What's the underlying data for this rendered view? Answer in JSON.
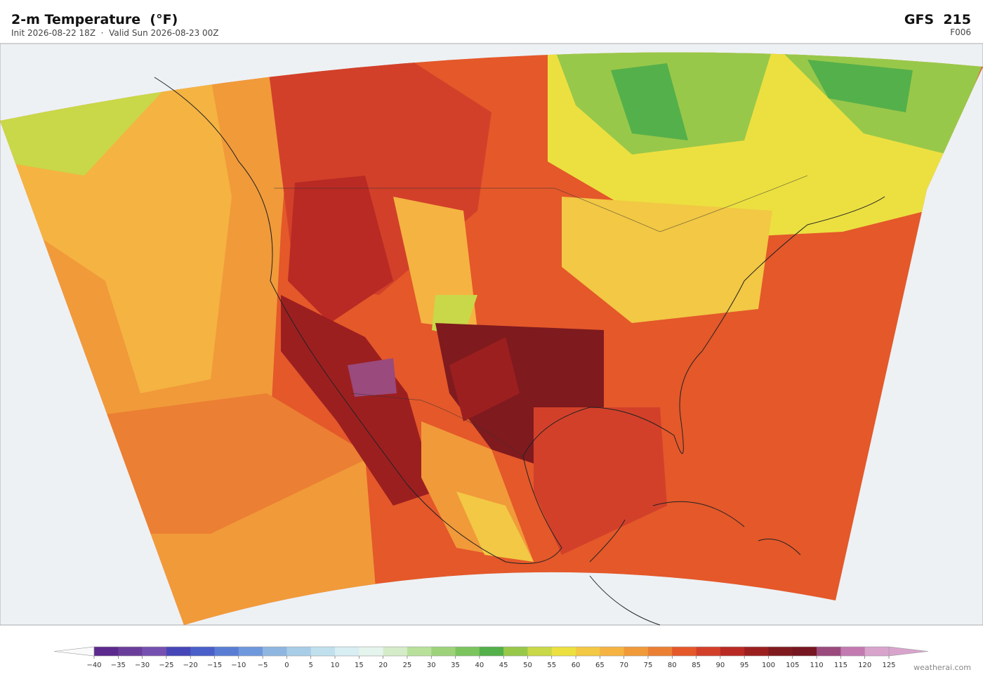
{
  "header": {
    "title": "2-m Temperature  (°F)",
    "subtitle": "Init 2026-08-22 18Z  ·  Valid Sun 2026-08-23 00Z",
    "model": "GFS  215",
    "forecast_hour": "F006"
  },
  "colorbar": {
    "ticks": [
      "−40",
      "−35",
      "−30",
      "−25",
      "−20",
      "−15",
      "−10",
      "−5",
      "0",
      "5",
      "10",
      "15",
      "20",
      "25",
      "30",
      "35",
      "40",
      "45",
      "50",
      "55",
      "60",
      "65",
      "70",
      "75",
      "80",
      "85",
      "90",
      "95",
      "100",
      "105",
      "110",
      "115",
      "120",
      "125"
    ],
    "colors": [
      "#5b2a8c",
      "#6a3d9a",
      "#7650b0",
      "#4646b8",
      "#4a5fc8",
      "#5a7dd4",
      "#6f98dc",
      "#8fb6e0",
      "#a8cde6",
      "#c0e0ee",
      "#d8eef2",
      "#e6f4ee",
      "#d4ecc8",
      "#b8e09a",
      "#9ed27a",
      "#7cc45e",
      "#54b04a",
      "#98c84a",
      "#c8d848",
      "#ece040",
      "#f2c844",
      "#f5b342",
      "#f19a3a",
      "#eb7f33",
      "#e4582a",
      "#d2402a",
      "#b92a24",
      "#9c1f20",
      "#7f1a1e",
      "#761620",
      "#9a4a7c",
      "#c27ab0",
      "#d8a4cc"
    ]
  },
  "footer": {
    "credit": "weatherai.com"
  }
}
